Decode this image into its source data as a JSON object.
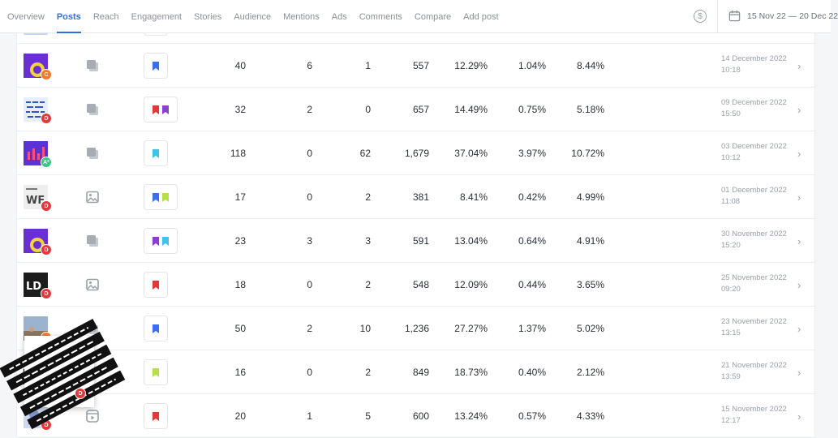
{
  "nav": {
    "tabs": [
      {
        "label": "Overview"
      },
      {
        "label": "Posts"
      },
      {
        "label": "Reach"
      },
      {
        "label": "Engagement"
      },
      {
        "label": "Stories"
      },
      {
        "label": "Audience"
      },
      {
        "label": "Mentions"
      },
      {
        "label": "Ads"
      },
      {
        "label": "Comments"
      },
      {
        "label": "Compare"
      },
      {
        "label": "Add post"
      }
    ],
    "active_tab": "Posts",
    "date_range": "15 Nov 22 — 20 Dec 22",
    "coin_symbol": "$"
  },
  "colors": {
    "accent": "#2f6fe0",
    "badge_red": "#e5383b",
    "badge_orange": "#f07a2a",
    "badge_green": "#3cc68a"
  },
  "rows": [
    {
      "thumb_icon": "purple-yellow-post-thumbnail",
      "badge": "C",
      "badge_color": "#f07a2a",
      "type_icon": "carousel-icon",
      "tags": [
        "#3b6ef0"
      ],
      "c1": "40",
      "c2": "6",
      "c3": "1",
      "c4": "557",
      "c5": "12.29%",
      "c6": "1.04%",
      "c7": "8.44%",
      "date": "14 December 2022",
      "time": "10:18"
    },
    {
      "thumb_icon": "blue-pattern-post-thumbnail",
      "badge": "D",
      "badge_color": "#e5383b",
      "type_icon": "carousel-icon",
      "tags": [
        "#e5383b",
        "#8a3fd1"
      ],
      "c1": "32",
      "c2": "2",
      "c3": "0",
      "c4": "657",
      "c5": "14.49%",
      "c6": "0.75%",
      "c7": "5.18%",
      "date": "09 December 2022",
      "time": "15:50"
    },
    {
      "thumb_icon": "purple-chart-post-thumbnail",
      "badge": "A*",
      "badge_color": "#3cc68a",
      "type_icon": "carousel-icon",
      "tags": [
        "#3fc3ea"
      ],
      "c1": "118",
      "c2": "0",
      "c3": "62",
      "c4": "1,679",
      "c5": "37.04%",
      "c6": "3.97%",
      "c7": "10.72%",
      "date": "03 December 2022",
      "time": "10:12"
    },
    {
      "thumb_icon": "wf-text-post-thumbnail",
      "badge": "D",
      "badge_color": "#e5383b",
      "type_icon": "image-icon",
      "tags": [
        "#3b6ef0",
        "#b6e04a"
      ],
      "c1": "17",
      "c2": "0",
      "c3": "2",
      "c4": "381",
      "c5": "8.41%",
      "c6": "0.42%",
      "c7": "4.99%",
      "date": "01 December 2022",
      "time": "11:08"
    },
    {
      "thumb_icon": "purple-yellow-post-thumbnail",
      "badge": "D",
      "badge_color": "#e5383b",
      "type_icon": "carousel-icon",
      "tags": [
        "#8a3fd1",
        "#3fc3ea"
      ],
      "c1": "23",
      "c2": "3",
      "c3": "3",
      "c4": "591",
      "c5": "13.04%",
      "c6": "0.64%",
      "c7": "4.91%",
      "date": "30 November 2022",
      "time": "15:20"
    },
    {
      "thumb_icon": "ld-logo-post-thumbnail",
      "badge": "D",
      "badge_color": "#e5383b",
      "type_icon": "image-icon",
      "tags": [
        "#e5383b"
      ],
      "c1": "18",
      "c2": "0",
      "c3": "2",
      "c4": "548",
      "c5": "12.09%",
      "c6": "0.44%",
      "c7": "3.65%",
      "date": "25 November 2022",
      "time": "09:20"
    },
    {
      "thumb_icon": "landscape-post-thumbnail",
      "badge": "",
      "badge_color": "#f07a2a",
      "type_icon": "carousel-icon",
      "tags": [
        "#3b6ef0"
      ],
      "c1": "50",
      "c2": "2",
      "c3": "10",
      "c4": "1,236",
      "c5": "27.27%",
      "c6": "1.37%",
      "c7": "5.02%",
      "date": "23 November 2022",
      "time": "13:15"
    },
    {
      "thumb_icon": "black-friday-post-thumbnail",
      "badge": "",
      "badge_color": "#e5383b",
      "type_icon": "carousel-icon",
      "tags": [
        "#b6e04a"
      ],
      "c1": "16",
      "c2": "0",
      "c3": "2",
      "c4": "849",
      "c5": "18.73%",
      "c6": "0.40%",
      "c7": "2.12%",
      "date": "21 November 2022",
      "time": "13:59"
    },
    {
      "thumb_icon": "blue-photo-post-thumbnail",
      "badge": "D",
      "badge_color": "#e5383b",
      "type_icon": "reel-icon",
      "tags": [
        "#e5383b"
      ],
      "c1": "20",
      "c2": "1",
      "c3": "5",
      "c4": "600",
      "c5": "13.24%",
      "c6": "0.57%",
      "c7": "4.33%",
      "date": "15 November 2022",
      "time": "12:17"
    }
  ],
  "preview": {
    "icon": "black-friday-preview-image",
    "badge": "D"
  },
  "chevron": "›"
}
